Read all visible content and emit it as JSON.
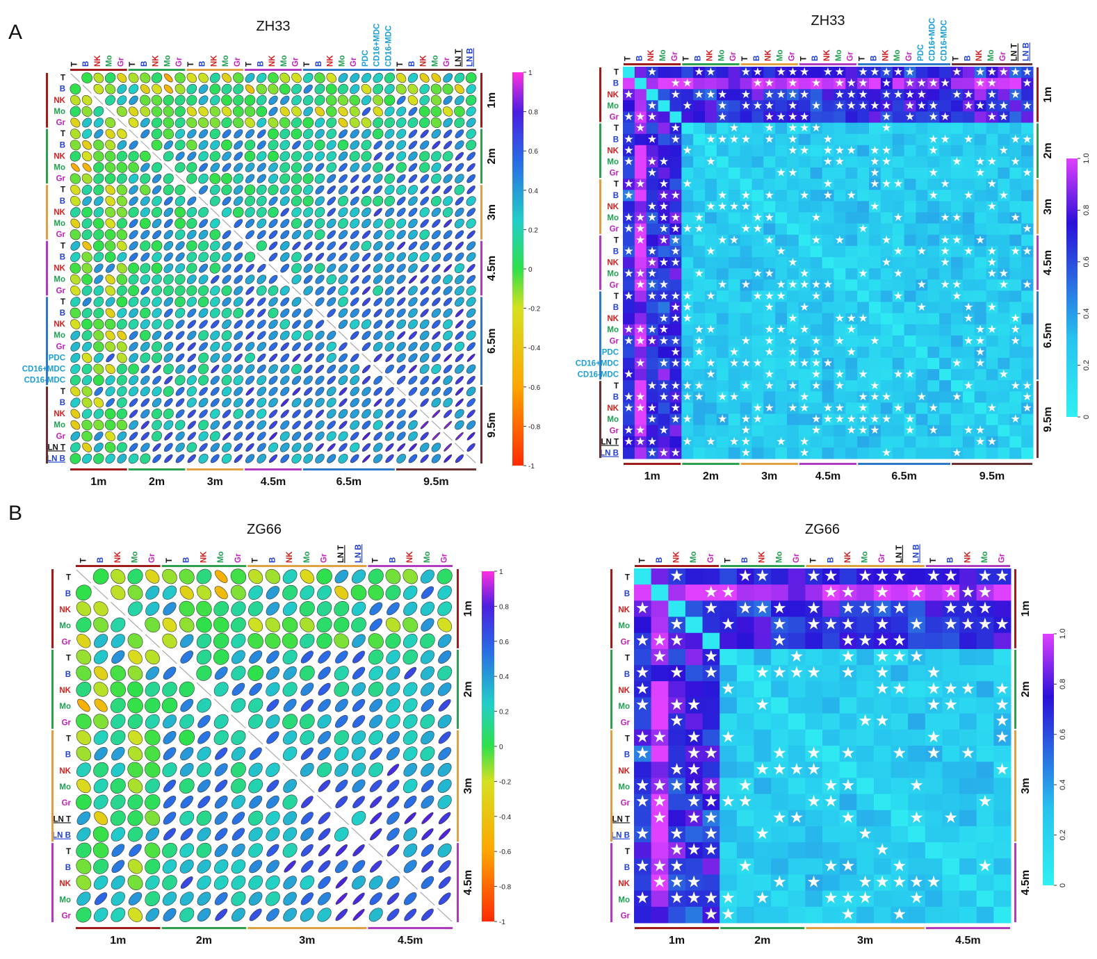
{
  "figure": {
    "panel_labels": [
      "A",
      "B"
    ]
  },
  "colors": {
    "T": "#111111",
    "B": "#1f3fcf",
    "NK": "#d21f1f",
    "Mo": "#1e9e50",
    "Gr": "#c21fb8",
    "PDC": "#1a9fd6",
    "CD16+MDC": "#1a9fd6",
    "CD16-MDC": "#1a9fd6",
    "LN T": "#111111",
    "LN B": "#1f3fcf",
    "group_bars": {
      "1m": "#a01a1a",
      "2m": "#2e9e4f",
      "3m": "#e0a040",
      "4.5m": "#b03ac0",
      "6.5m": "#2f78c8",
      "9.5m": "#6a3030"
    }
  },
  "chart_data": [
    {
      "type": "heatmap",
      "subtype": "correlation-ellipse",
      "title": "ZH33",
      "groups": [
        {
          "name": "1m",
          "items": [
            "T",
            "B",
            "NK",
            "Mo",
            "Gr"
          ]
        },
        {
          "name": "2m",
          "items": [
            "T",
            "B",
            "NK",
            "Mo",
            "Gr"
          ]
        },
        {
          "name": "3m",
          "items": [
            "T",
            "B",
            "NK",
            "Mo",
            "Gr"
          ]
        },
        {
          "name": "4.5m",
          "items": [
            "T",
            "B",
            "NK",
            "Mo",
            "Gr"
          ]
        },
        {
          "name": "6.5m",
          "items": [
            "T",
            "B",
            "NK",
            "Mo",
            "Gr",
            "PDC",
            "CD16+MDC",
            "CD16-MDC"
          ]
        },
        {
          "name": "9.5m",
          "items": [
            "T",
            "B",
            "NK",
            "Mo",
            "Gr",
            "LN T",
            "LN B"
          ]
        }
      ],
      "colorbar": {
        "ticks": [
          "1",
          "0.8",
          "0.6",
          "0.4",
          "0.2",
          "0",
          "-0.2",
          "-0.4",
          "-0.6",
          "-0.8",
          "-1"
        ],
        "range": [
          -1,
          1
        ]
      }
    },
    {
      "type": "heatmap",
      "subtype": "significance",
      "title": "ZH33",
      "groups": [
        {
          "name": "1m",
          "items": [
            "T",
            "B",
            "NK",
            "Mo",
            "Gr"
          ]
        },
        {
          "name": "2m",
          "items": [
            "T",
            "B",
            "NK",
            "Mo",
            "Gr"
          ]
        },
        {
          "name": "3m",
          "items": [
            "T",
            "B",
            "NK",
            "Mo",
            "Gr"
          ]
        },
        {
          "name": "4.5m",
          "items": [
            "T",
            "B",
            "NK",
            "Mo",
            "Gr"
          ]
        },
        {
          "name": "6.5m",
          "items": [
            "T",
            "B",
            "NK",
            "Mo",
            "Gr",
            "PDC",
            "CD16+MDC",
            "CD16-MDC"
          ]
        },
        {
          "name": "9.5m",
          "items": [
            "T",
            "B",
            "NK",
            "Mo",
            "Gr",
            "LN T",
            "LN B"
          ]
        }
      ],
      "colorbar": {
        "ticks": [
          "0",
          "0.2",
          "0.4",
          "0.6",
          "0.8",
          "1.0"
        ],
        "range": [
          0,
          1
        ]
      },
      "marker": "★"
    },
    {
      "type": "heatmap",
      "subtype": "correlation-ellipse",
      "title": "ZG66",
      "groups": [
        {
          "name": "1m",
          "items": [
            "T",
            "B",
            "NK",
            "Mo",
            "Gr"
          ]
        },
        {
          "name": "2m",
          "items": [
            "T",
            "B",
            "NK",
            "Mo",
            "Gr"
          ]
        },
        {
          "name": "3m",
          "items": [
            "T",
            "B",
            "NK",
            "Mo",
            "Gr",
            "LN T",
            "LN B"
          ]
        },
        {
          "name": "4.5m",
          "items": [
            "T",
            "B",
            "NK",
            "Mo",
            "Gr"
          ]
        }
      ],
      "colorbar": {
        "ticks": [
          "1",
          "0.8",
          "0.6",
          "0.4",
          "0.2",
          "0",
          "-0.2",
          "-0.4",
          "-0.6",
          "-0.8",
          "-1"
        ],
        "range": [
          -1,
          1
        ]
      }
    },
    {
      "type": "heatmap",
      "subtype": "significance",
      "title": "ZG66",
      "groups": [
        {
          "name": "1m",
          "items": [
            "T",
            "B",
            "NK",
            "Mo",
            "Gr"
          ]
        },
        {
          "name": "2m",
          "items": [
            "T",
            "B",
            "NK",
            "Mo",
            "Gr"
          ]
        },
        {
          "name": "3m",
          "items": [
            "T",
            "B",
            "NK",
            "Mo",
            "Gr",
            "LN T",
            "LN B"
          ]
        },
        {
          "name": "4.5m",
          "items": [
            "T",
            "B",
            "NK",
            "Mo",
            "Gr"
          ]
        }
      ],
      "colorbar": {
        "ticks": [
          "0",
          "0.2",
          "0.4",
          "0.6",
          "0.8",
          "1.0"
        ],
        "range": [
          0,
          1
        ]
      },
      "marker": "★"
    }
  ]
}
